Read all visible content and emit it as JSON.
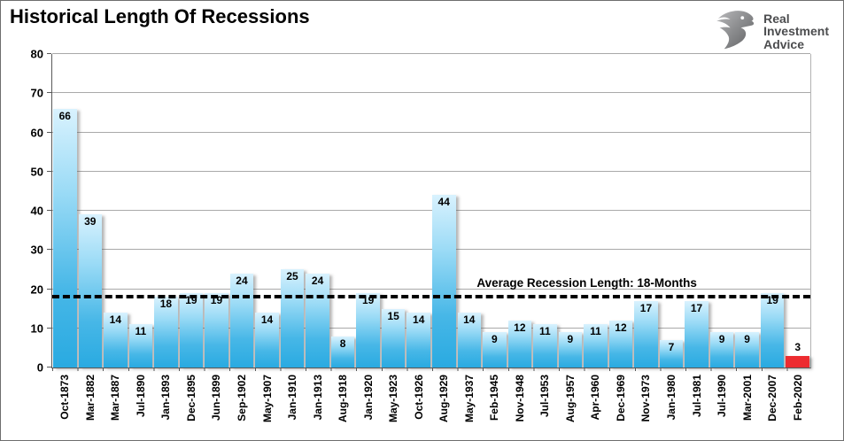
{
  "header": {
    "title": "Historical Length Of Recessions",
    "logo": {
      "line1": "Real",
      "line2": "Investment",
      "line3": "Advice",
      "icon": "eagle-icon"
    }
  },
  "chart_data": {
    "type": "bar",
    "title": "Historical Length Of Recessions",
    "xlabel": "",
    "ylabel": "",
    "ylim": [
      0,
      80
    ],
    "yticks": [
      0,
      10,
      20,
      30,
      40,
      50,
      60,
      70,
      80
    ],
    "grid": true,
    "categories": [
      "Oct-1873",
      "Mar-1882",
      "Mar-1887",
      "Jul-1890",
      "Jan-1893",
      "Dec-1895",
      "Jun-1899",
      "Sep-1902",
      "May-1907",
      "Jan-1910",
      "Jan-1913",
      "Aug-1918",
      "Jan-1920",
      "May-1923",
      "Oct-1926",
      "Aug-1929",
      "May-1937",
      "Feb-1945",
      "Nov-1948",
      "Jul-1953",
      "Aug-1957",
      "Apr-1960",
      "Dec-1969",
      "Nov-1973",
      "Jan-1980",
      "Jul-1981",
      "Jul-1990",
      "Mar-2001",
      "Dec-2007",
      "Feb-2020"
    ],
    "values": [
      66,
      39,
      14,
      11,
      18,
      19,
      19,
      24,
      14,
      25,
      24,
      8,
      19,
      15,
      14,
      44,
      14,
      9,
      12,
      11,
      9,
      11,
      12,
      17,
      7,
      17,
      9,
      9,
      19,
      3
    ],
    "bar_color_top": "#d9f2fe",
    "bar_color_bottom": "#29aae1",
    "highlight_index": 29,
    "highlight_color": "#ed2c30",
    "average_line": {
      "value": 18,
      "label": "Average Recession Length: 18-Months",
      "style": "dashed-black"
    }
  }
}
